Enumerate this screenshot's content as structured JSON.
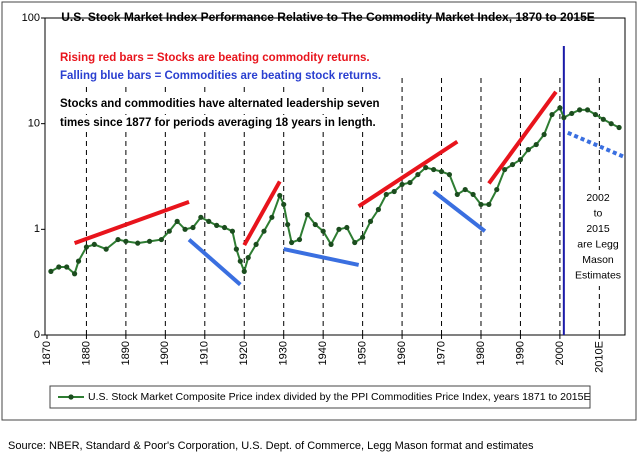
{
  "chart_data": {
    "type": "line",
    "title": "U.S. Stock Market Index Performance Relative to The Commodity Market Index, 1870 to 2015E",
    "log_y": true,
    "grid": true,
    "xlim": [
      1869.5,
      2016.5
    ],
    "xticks": [
      1870,
      1880,
      1890,
      1900,
      1910,
      1920,
      1930,
      1940,
      1950,
      1960,
      1970,
      1980,
      1990,
      2000,
      {
        "value": 2010,
        "label": "2010E"
      }
    ],
    "ylim": [
      0.1,
      100
    ],
    "yticks": [
      {
        "value": 0.1,
        "label": "0"
      },
      1,
      10,
      100
    ],
    "series": [
      {
        "name": "U.S. Stock Market Composite Price index divided by the PPI Commodities Price Index, years 1871 to 2015E",
        "color": "#2e7d32",
        "marker_color": "#1b4d1e",
        "x": [
          1871,
          1873,
          1875,
          1877,
          1878,
          1880,
          1882,
          1885,
          1888,
          1890,
          1893,
          1896,
          1899,
          1901,
          1903,
          1905,
          1907,
          1909,
          1911,
          1913,
          1915,
          1917,
          1918,
          1919,
          1920,
          1921,
          1923,
          1925,
          1927,
          1929,
          1930,
          1931,
          1932,
          1934,
          1936,
          1938,
          1940,
          1942,
          1944,
          1946,
          1948,
          1950,
          1952,
          1954,
          1956,
          1958,
          1960,
          1962,
          1964,
          1966,
          1968,
          1970,
          1972,
          1974,
          1976,
          1978,
          1980,
          1982,
          1984,
          1986,
          1988,
          1990,
          1992,
          1994,
          1996,
          1998,
          2000,
          2001,
          2003,
          2005,
          2007,
          2009,
          2011,
          2013,
          2015
        ],
        "values": [
          0.4,
          0.44,
          0.44,
          0.38,
          0.5,
          0.68,
          0.72,
          0.65,
          0.8,
          0.77,
          0.74,
          0.77,
          0.8,
          0.96,
          1.19,
          1.0,
          1.04,
          1.3,
          1.19,
          1.09,
          1.04,
          0.96,
          0.65,
          0.5,
          0.4,
          0.54,
          0.72,
          0.96,
          1.3,
          2.09,
          1.72,
          1.11,
          0.75,
          0.8,
          1.38,
          1.11,
          0.96,
          0.72,
          1.0,
          1.04,
          0.75,
          0.84,
          1.19,
          1.54,
          2.14,
          2.28,
          2.66,
          2.77,
          3.3,
          3.84,
          3.68,
          3.52,
          3.3,
          2.14,
          2.38,
          2.14,
          1.72,
          1.72,
          2.38,
          3.68,
          4.1,
          4.57,
          5.68,
          6.34,
          7.9,
          12.2,
          14.1,
          11.4,
          12.5,
          13.5,
          13.5,
          12.2,
          11,
          10,
          9.2
        ]
      }
    ],
    "trend_lines": [
      {
        "color": "#e8141c",
        "x": [
          1877,
          1906
        ],
        "values": [
          0.74,
          1.82
        ]
      },
      {
        "color": "#e8141c",
        "x": [
          1920,
          1929
        ],
        "values": [
          0.71,
          2.84
        ]
      },
      {
        "color": "#e8141c",
        "x": [
          1949,
          1974
        ],
        "values": [
          1.65,
          6.76
        ]
      },
      {
        "color": "#e8141c",
        "x": [
          1982,
          1999
        ],
        "values": [
          2.72,
          20
        ]
      },
      {
        "color": "#3a6fe0",
        "x": [
          1906,
          1919
        ],
        "values": [
          0.8,
          0.3
        ]
      },
      {
        "color": "#3a6fe0",
        "x": [
          1930,
          1949
        ],
        "values": [
          0.65,
          0.46
        ]
      },
      {
        "color": "#3a6fe0",
        "x": [
          1968,
          1981
        ],
        "values": [
          2.28,
          0.96
        ]
      },
      {
        "color": "#3a6fe0",
        "x": [
          2002,
          2016
        ],
        "values": [
          8.2,
          4.9
        ],
        "dashed": true
      }
    ],
    "estimate_start": 2001,
    "estimate_color": "#1a1aa8",
    "annotations": [
      {
        "text": "Rising red bars = Stocks are beating commodity returns.",
        "color": "#e8141c"
      },
      {
        "text": "Falling blue bars = Commodities are beating stock returns.",
        "color": "#2a3fd0"
      },
      {
        "text": "Stocks and commodities have alternated leadership seven",
        "color": "#000000"
      },
      {
        "text": "times since 1877 for periods averaging 18 years in length.",
        "color": "#000000"
      }
    ],
    "note": [
      "2002",
      "to",
      "2015",
      "are Legg",
      "Mason",
      "Estimates"
    ],
    "source": "Source: NBER, Standard & Poor's Corporation, U.S. Dept. of Commerce, Legg Mason format and estimates"
  }
}
